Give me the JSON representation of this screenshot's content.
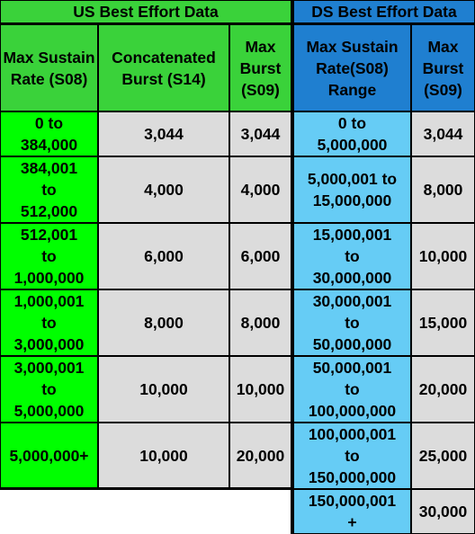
{
  "us": {
    "title": "US Best Effort Data",
    "headers": [
      "Max Sustain Rate (S08)",
      "Concatenated Burst (S14)",
      "Max Burst (S09)"
    ],
    "rows": [
      [
        "0 to\n384,000",
        "3,044",
        "3,044"
      ],
      [
        "384,001\nto\n512,000",
        "4,000",
        "4,000"
      ],
      [
        "512,001\nto\n1,000,000",
        "6,000",
        "6,000"
      ],
      [
        "1,000,001\nto\n3,000,000",
        "8,000",
        "8,000"
      ],
      [
        "3,000,001\nto\n5,000,000",
        "10,000",
        "10,000"
      ],
      [
        "5,000,000+",
        "10,000",
        "20,000"
      ]
    ]
  },
  "ds": {
    "title": "DS Best Effort Data",
    "headers": [
      "Max Sustain Rate(S08) Range",
      "Max Burst (S09)"
    ],
    "rows": [
      [
        "0 to\n5,000,000",
        "3,044"
      ],
      [
        "5,000,001 to\n15,000,000",
        "8,000"
      ],
      [
        "15,000,001\nto\n30,000,000",
        "10,000"
      ],
      [
        "30,000,001\nto\n50,000,000",
        "15,000"
      ],
      [
        "50,000,001\nto\n100,000,000",
        "20,000"
      ],
      [
        "100,000,001\nto\n150,000,000",
        "25,000"
      ],
      [
        "150,000,001\n+",
        "30,000"
      ]
    ]
  },
  "colors": {
    "border": "#000000",
    "us_title_bg": "#3ad23a",
    "us_header_bg": "#3ad23a",
    "us_rate_bg": "#00ff00",
    "gray_bg": "#dcdcdc",
    "ds_title_bg": "#1f7fd0",
    "ds_header_bg": "#1f7fd0",
    "ds_cell_bg": "#66ccf5",
    "header_text": "#000000"
  }
}
